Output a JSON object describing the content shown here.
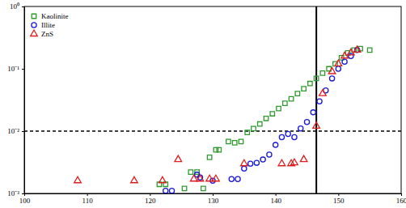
{
  "chart_data": {
    "type": "scatter",
    "log": "y",
    "legend": "upper left",
    "xlim": [
      100,
      160
    ],
    "xticks": [
      100,
      110,
      120,
      130,
      140,
      150,
      160
    ],
    "ylim": [
      0.001,
      1
    ],
    "yticks": [
      {
        "value": 0.001,
        "label": "10⁻³"
      },
      {
        "value": 0.01,
        "label": "10⁻²"
      },
      {
        "value": 0.1,
        "label": "10⁻¹"
      },
      {
        "value": 1,
        "label": "10⁰"
      }
    ],
    "reference_lines": {
      "y": 0.01,
      "x": 146.5
    },
    "series": [
      {
        "name": "Kaolinite",
        "color": "#2e9a2e",
        "marker": "square",
        "x": [
          121.5,
          122.5,
          125.5,
          126.5,
          127.5,
          128.5,
          129.5,
          130.5,
          131.0,
          132.5,
          133.5,
          134.5,
          135.5,
          136.5,
          137.5,
          138.5,
          139.5,
          140.5,
          141.5,
          142.5,
          143.5,
          144.5,
          145.5,
          146.5,
          147.5,
          148.5,
          149.5,
          150.5,
          151.5,
          152.5,
          153.5,
          155.0
        ],
        "values": [
          0.0014,
          0.0014,
          0.0012,
          0.0022,
          0.0022,
          0.0012,
          0.0038,
          0.005,
          0.005,
          0.0068,
          0.0065,
          0.0068,
          0.0095,
          0.011,
          0.013,
          0.016,
          0.019,
          0.023,
          0.028,
          0.033,
          0.04,
          0.048,
          0.058,
          0.07,
          0.085,
          0.1,
          0.12,
          0.15,
          0.18,
          0.2,
          0.21,
          0.2
        ]
      },
      {
        "name": "Illite",
        "color": "#1a1ad6",
        "marker": "circle",
        "x": [
          122.5,
          123.5,
          127.5,
          128.0,
          130.0,
          133.0,
          134.0,
          135.0,
          136.0,
          137.0,
          138.0,
          139.0,
          140.0,
          141.0,
          142.0,
          143.0,
          144.0,
          145.0,
          146.0,
          147.0,
          148.0,
          149.0,
          150.0,
          151.0,
          152.0,
          153.0
        ],
        "values": [
          0.0011,
          0.0011,
          0.002,
          0.0018,
          0.0016,
          0.0017,
          0.0017,
          0.0025,
          0.003,
          0.0031,
          0.0035,
          0.0042,
          0.006,
          0.008,
          0.009,
          0.008,
          0.011,
          0.014,
          0.02,
          0.03,
          0.045,
          0.07,
          0.1,
          0.13,
          0.16,
          0.2
        ]
      },
      {
        "name": "ZnS",
        "color": "#e01e1e",
        "marker": "triangle",
        "x": [
          108.5,
          117.5,
          122.0,
          124.5,
          127.0,
          128.0,
          129.5,
          130.5,
          135.0,
          141.0,
          142.5,
          143.0,
          144.5,
          146.5,
          147.5,
          149.0,
          150.0,
          151.0,
          152.0,
          153.0
        ],
        "values": [
          0.0016,
          0.0016,
          0.0016,
          0.0035,
          0.0017,
          0.0017,
          0.0017,
          0.0017,
          0.003,
          0.003,
          0.003,
          0.0031,
          0.0035,
          0.012,
          0.04,
          0.09,
          0.12,
          0.16,
          0.18,
          0.2
        ]
      }
    ]
  }
}
